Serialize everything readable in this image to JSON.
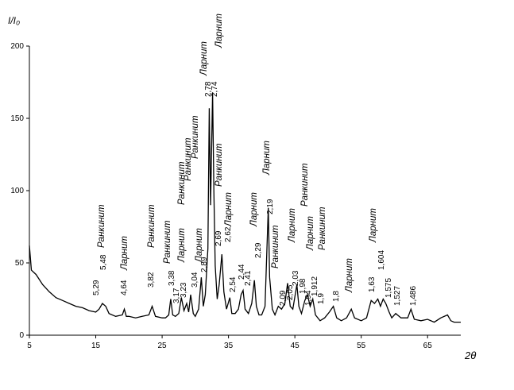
{
  "chart_data": {
    "type": "line",
    "ylabel": "I/I₀",
    "xlabel": "2θ",
    "xlim": [
      5,
      70
    ],
    "xticks": [
      5,
      15,
      25,
      35,
      45,
      55,
      65
    ],
    "ylim": [
      0,
      200
    ],
    "yticks": [
      0,
      50,
      100,
      150,
      200
    ],
    "series": [
      {
        "color": "#000000",
        "x": [
          5,
          5.3,
          6,
          7,
          8,
          9,
          10,
          11,
          12,
          13,
          14,
          15,
          15.5,
          16,
          16.5,
          17,
          18,
          19,
          19.3,
          19.6,
          20,
          21,
          22,
          23,
          23.5,
          24,
          25,
          25.5,
          26,
          26.3,
          26.6,
          27,
          27.5,
          27.9,
          28.3,
          28.7,
          29,
          29.3,
          29.7,
          30,
          30.5,
          30.9,
          31.2,
          31.5,
          31.9,
          32.1,
          32.3,
          32.6,
          32.8,
          33,
          33.3,
          33.6,
          34,
          34.3,
          34.7,
          35.2,
          35.5,
          36,
          36.5,
          36.9,
          37.2,
          37.5,
          38,
          38.5,
          38.9,
          39.2,
          39.6,
          40,
          40.5,
          41,
          41.2,
          41.6,
          42,
          42.5,
          43,
          43.5,
          43.9,
          44.3,
          44.7,
          45.3,
          45.6,
          46,
          46.5,
          46.9,
          47.3,
          47.7,
          48.1,
          48.8,
          49.5,
          50.2,
          50.8,
          51.3,
          52,
          52.8,
          53.5,
          54,
          55,
          55.8,
          56.5,
          57,
          57.5,
          57.9,
          58.3,
          58.7,
          59.2,
          59.6,
          60.2,
          61,
          62,
          62.5,
          63,
          64,
          65,
          66,
          67,
          68,
          68.5,
          69,
          70
        ],
        "values": [
          62,
          45,
          42,
          35,
          30,
          26,
          24,
          22,
          20,
          19,
          17,
          16,
          18,
          22,
          20,
          15,
          13,
          14,
          18,
          13,
          13,
          12,
          13,
          14,
          20,
          13,
          12,
          12,
          14,
          25,
          14,
          13,
          15,
          26,
          17,
          22,
          16,
          28,
          15,
          13,
          18,
          40,
          20,
          28,
          60,
          157,
          90,
          168,
          100,
          48,
          25,
          35,
          56,
          30,
          18,
          26,
          15,
          15,
          18,
          28,
          31,
          18,
          15,
          22,
          38,
          20,
          14,
          14,
          20,
          88,
          40,
          18,
          14,
          20,
          18,
          22,
          36,
          20,
          18,
          35,
          20,
          15,
          24,
          28,
          20,
          25,
          14,
          10,
          12,
          16,
          20,
          12,
          10,
          12,
          18,
          12,
          10,
          12,
          24,
          22,
          25,
          20,
          25,
          22,
          16,
          12,
          15,
          12,
          12,
          18,
          11,
          10,
          11,
          9,
          12,
          14,
          10,
          9,
          9
        ]
      }
    ],
    "peak_labels": [
      "5,48",
      "5,29",
      "4,64",
      "3,82",
      "3,38",
      "3,23",
      "3,17",
      "3,04",
      "2,89",
      "2,78",
      "2,74",
      "2,69",
      "2,62",
      "2,54",
      "2,44",
      "2,41",
      "2,29",
      "2,19",
      "2,09",
      "2,05",
      "2,03",
      "1,98",
      "1,94",
      "1,912",
      "1,9",
      "1,8",
      "1,63",
      "1,604",
      "1,575",
      "1,527",
      "1,486"
    ],
    "phase_labels": [
      "Ранкинит",
      "Ларнит",
      "Ранкинит",
      "Ранкинит",
      "Ларнит",
      "Ранкинит",
      "Ранкинит",
      "Ранкинит",
      "Ларнит",
      "Ларнит",
      "Ларнит",
      "Ранкинит",
      "Ларнит",
      "Ларнит",
      "Ларнит",
      "Ранкинит",
      "Ларнит",
      "Ранкинит",
      "Ларнит",
      "Ранкинит",
      "Ларнит",
      "Ларнит"
    ]
  }
}
